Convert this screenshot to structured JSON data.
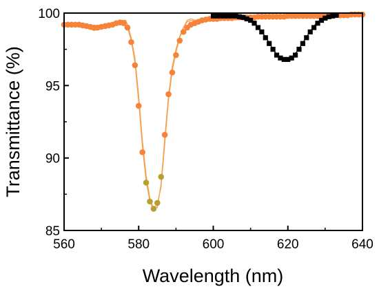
{
  "chart_data": {
    "type": "scatter",
    "xlabel": "Wavelength (nm)",
    "ylabel": "Transmittance (%)",
    "xlim": [
      560,
      640
    ],
    "ylim": [
      85,
      100
    ],
    "xticks": [
      560,
      580,
      600,
      620,
      640
    ],
    "yticks": [
      85,
      90,
      95,
      100
    ],
    "xtick_labels": [
      "560",
      "580",
      "600",
      "620",
      "640"
    ],
    "ytick_labels": [
      "85",
      "90",
      "95",
      "100"
    ],
    "grid": false,
    "legend": "none",
    "colors": {
      "orange": "#f5843a",
      "orange_line": "#f5a050",
      "olive": "#b8a030",
      "black": "#000000"
    },
    "series": [
      {
        "marker": "circle",
        "color": "#f5843a",
        "points": [
          [
            560,
            99.2
          ],
          [
            561,
            99.2
          ],
          [
            562,
            99.2
          ],
          [
            563,
            99.2
          ],
          [
            564,
            99.2
          ],
          [
            565,
            99.15
          ],
          [
            566,
            99.1
          ],
          [
            567,
            99.05
          ],
          [
            568,
            99.0
          ],
          [
            569,
            99.0
          ],
          [
            570,
            99.05
          ],
          [
            571,
            99.1
          ],
          [
            572,
            99.15
          ],
          [
            573,
            99.2
          ],
          [
            574,
            99.3
          ],
          [
            575,
            99.35
          ],
          [
            576,
            99.3
          ],
          [
            577,
            99.0
          ],
          [
            578,
            98.0
          ],
          [
            579,
            96.4
          ],
          [
            580,
            93.6
          ],
          [
            581,
            90.4
          ],
          [
            582,
            88.3
          ],
          [
            583,
            87.0
          ],
          [
            584,
            86.5
          ],
          [
            585,
            86.9
          ],
          [
            586,
            88.7
          ],
          [
            587,
            91.6
          ],
          [
            588,
            94.4
          ],
          [
            589,
            95.9
          ],
          [
            590,
            97.1
          ],
          [
            591,
            98.1
          ],
          [
            592,
            98.7
          ],
          [
            593,
            99.0
          ],
          [
            594,
            99.2
          ],
          [
            595,
            99.3
          ],
          [
            596,
            99.4
          ],
          [
            597,
            99.5
          ],
          [
            598,
            99.55
          ],
          [
            599,
            99.6
          ],
          [
            600,
            99.6
          ],
          [
            601,
            99.6
          ],
          [
            602,
            99.65
          ],
          [
            603,
            99.65
          ],
          [
            604,
            99.65
          ],
          [
            605,
            99.65
          ],
          [
            606,
            99.7
          ],
          [
            607,
            99.7
          ],
          [
            608,
            99.7
          ],
          [
            609,
            99.7
          ],
          [
            610,
            99.7
          ],
          [
            611,
            99.7
          ],
          [
            612,
            99.75
          ],
          [
            613,
            99.75
          ],
          [
            614,
            99.75
          ],
          [
            615,
            99.75
          ],
          [
            616,
            99.75
          ],
          [
            617,
            99.75
          ],
          [
            618,
            99.75
          ],
          [
            619,
            99.75
          ],
          [
            620,
            99.8
          ],
          [
            621,
            99.8
          ],
          [
            622,
            99.8
          ],
          [
            623,
            99.8
          ],
          [
            624,
            99.8
          ],
          [
            625,
            99.8
          ],
          [
            626,
            99.8
          ],
          [
            627,
            99.8
          ],
          [
            628,
            99.8
          ],
          [
            629,
            99.8
          ],
          [
            630,
            99.85
          ],
          [
            631,
            99.85
          ],
          [
            632,
            99.85
          ],
          [
            633,
            99.85
          ],
          [
            634,
            99.85
          ],
          [
            635,
            99.85
          ],
          [
            636,
            99.85
          ],
          [
            637,
            99.9
          ],
          [
            638,
            99.9
          ],
          [
            639,
            99.9
          ],
          [
            640,
            99.9
          ]
        ],
        "olive_indices": [
          22,
          23,
          24,
          25,
          26
        ]
      },
      {
        "marker": "square",
        "color": "#000000",
        "points": [
          [
            600,
            99.8
          ],
          [
            601,
            99.8
          ],
          [
            602,
            99.8
          ],
          [
            603,
            99.8
          ],
          [
            604,
            99.8
          ],
          [
            605,
            99.8
          ],
          [
            606,
            99.8
          ],
          [
            607,
            99.75
          ],
          [
            608,
            99.7
          ],
          [
            609,
            99.6
          ],
          [
            610,
            99.5
          ],
          [
            611,
            99.3
          ],
          [
            612,
            99.0
          ],
          [
            613,
            98.7
          ],
          [
            614,
            98.3
          ],
          [
            615,
            97.9
          ],
          [
            616,
            97.5
          ],
          [
            617,
            97.1
          ],
          [
            618,
            96.9
          ],
          [
            619,
            96.8
          ],
          [
            620,
            96.8
          ],
          [
            621,
            96.9
          ],
          [
            622,
            97.1
          ],
          [
            623,
            97.5
          ],
          [
            624,
            97.9
          ],
          [
            625,
            98.3
          ],
          [
            626,
            98.7
          ],
          [
            627,
            99.0
          ],
          [
            628,
            99.3
          ],
          [
            629,
            99.5
          ],
          [
            630,
            99.65
          ],
          [
            631,
            99.75
          ],
          [
            632,
            99.8
          ],
          [
            633,
            99.85
          ]
        ]
      }
    ],
    "lines": [
      {
        "color": "#f5a050",
        "points": [
          [
            560,
            99.1
          ],
          [
            562,
            99.2
          ],
          [
            564,
            99.2
          ],
          [
            566,
            99.0
          ],
          [
            568,
            98.8
          ],
          [
            569,
            98.85
          ],
          [
            570,
            99.0
          ],
          [
            572,
            99.1
          ],
          [
            574,
            99.25
          ],
          [
            575,
            99.4
          ],
          [
            576,
            99.3
          ],
          [
            577,
            99.0
          ],
          [
            578,
            98.1
          ],
          [
            579,
            96.6
          ],
          [
            580,
            93.9
          ],
          [
            581,
            90.8
          ],
          [
            582,
            88.4
          ],
          [
            583,
            87.0
          ],
          [
            584,
            86.4
          ],
          [
            585,
            86.6
          ],
          [
            586,
            88.2
          ],
          [
            587,
            91.4
          ],
          [
            588,
            94.3
          ],
          [
            589,
            96.3
          ],
          [
            590,
            97.5
          ],
          [
            591,
            98.4
          ],
          [
            592,
            99.0
          ],
          [
            593,
            99.4
          ],
          [
            594,
            99.5
          ],
          [
            596,
            99.4
          ],
          [
            598,
            99.45
          ],
          [
            600,
            99.6
          ],
          [
            602,
            99.6
          ],
          [
            604,
            99.6
          ],
          [
            606,
            99.55
          ],
          [
            608,
            99.6
          ],
          [
            610,
            99.7
          ],
          [
            612,
            99.65
          ],
          [
            614,
            99.7
          ],
          [
            616,
            99.75
          ],
          [
            618,
            99.75
          ],
          [
            620,
            99.7
          ],
          [
            622,
            99.8
          ],
          [
            624,
            99.75
          ],
          [
            626,
            99.85
          ],
          [
            628,
            99.8
          ],
          [
            630,
            99.8
          ],
          [
            632,
            99.75
          ],
          [
            634,
            99.85
          ],
          [
            636,
            99.9
          ],
          [
            638,
            99.85
          ],
          [
            640,
            99.9
          ]
        ]
      },
      {
        "color": "#f5a050",
        "points": [
          [
            560,
            99.2
          ],
          [
            563,
            99.3
          ],
          [
            566,
            99.2
          ],
          [
            569,
            98.95
          ],
          [
            571,
            99.05
          ],
          [
            574,
            99.3
          ],
          [
            575.5,
            99.5
          ],
          [
            576.5,
            99.5
          ],
          [
            577,
            99.2
          ],
          [
            578,
            98.3
          ],
          [
            579,
            96.9
          ],
          [
            580,
            94.3
          ],
          [
            581,
            91.2
          ],
          [
            582,
            88.8
          ],
          [
            583,
            87.2
          ],
          [
            584,
            86.5
          ],
          [
            585,
            86.8
          ],
          [
            586,
            88.0
          ],
          [
            587,
            91.0
          ],
          [
            588,
            94.0
          ],
          [
            589,
            96.0
          ],
          [
            590,
            97.3
          ],
          [
            591,
            98.3
          ],
          [
            592,
            99.0
          ],
          [
            593,
            99.5
          ],
          [
            594,
            99.6
          ],
          [
            596,
            99.45
          ],
          [
            598,
            99.5
          ],
          [
            600,
            99.55
          ],
          [
            603,
            99.6
          ],
          [
            606,
            99.65
          ],
          [
            609,
            99.6
          ],
          [
            612,
            99.75
          ],
          [
            615,
            99.7
          ],
          [
            618,
            99.8
          ],
          [
            621,
            99.75
          ],
          [
            624,
            99.8
          ],
          [
            627,
            99.85
          ],
          [
            630,
            99.8
          ],
          [
            633,
            99.9
          ],
          [
            636,
            99.85
          ],
          [
            640,
            99.95
          ]
        ]
      },
      {
        "color": "#000000",
        "points": [
          [
            600,
            99.8
          ],
          [
            602,
            99.85
          ],
          [
            604,
            99.8
          ],
          [
            606,
            99.85
          ],
          [
            607,
            99.7
          ],
          [
            608,
            99.75
          ],
          [
            609,
            99.6
          ],
          [
            610,
            99.45
          ],
          [
            611,
            99.3
          ],
          [
            612,
            99.05
          ],
          [
            613,
            98.7
          ],
          [
            614,
            98.35
          ],
          [
            615,
            97.95
          ],
          [
            616,
            97.5
          ],
          [
            617,
            97.15
          ],
          [
            618,
            96.95
          ],
          [
            619,
            96.8
          ],
          [
            620,
            96.85
          ],
          [
            621,
            96.95
          ],
          [
            622,
            97.2
          ],
          [
            623,
            97.55
          ],
          [
            624,
            97.95
          ],
          [
            625,
            98.35
          ],
          [
            626,
            98.75
          ],
          [
            627,
            99.1
          ],
          [
            628,
            99.4
          ],
          [
            629,
            99.55
          ],
          [
            630,
            99.7
          ],
          [
            631,
            99.8
          ],
          [
            632,
            99.85
          ],
          [
            633,
            99.8
          ]
        ]
      }
    ]
  }
}
